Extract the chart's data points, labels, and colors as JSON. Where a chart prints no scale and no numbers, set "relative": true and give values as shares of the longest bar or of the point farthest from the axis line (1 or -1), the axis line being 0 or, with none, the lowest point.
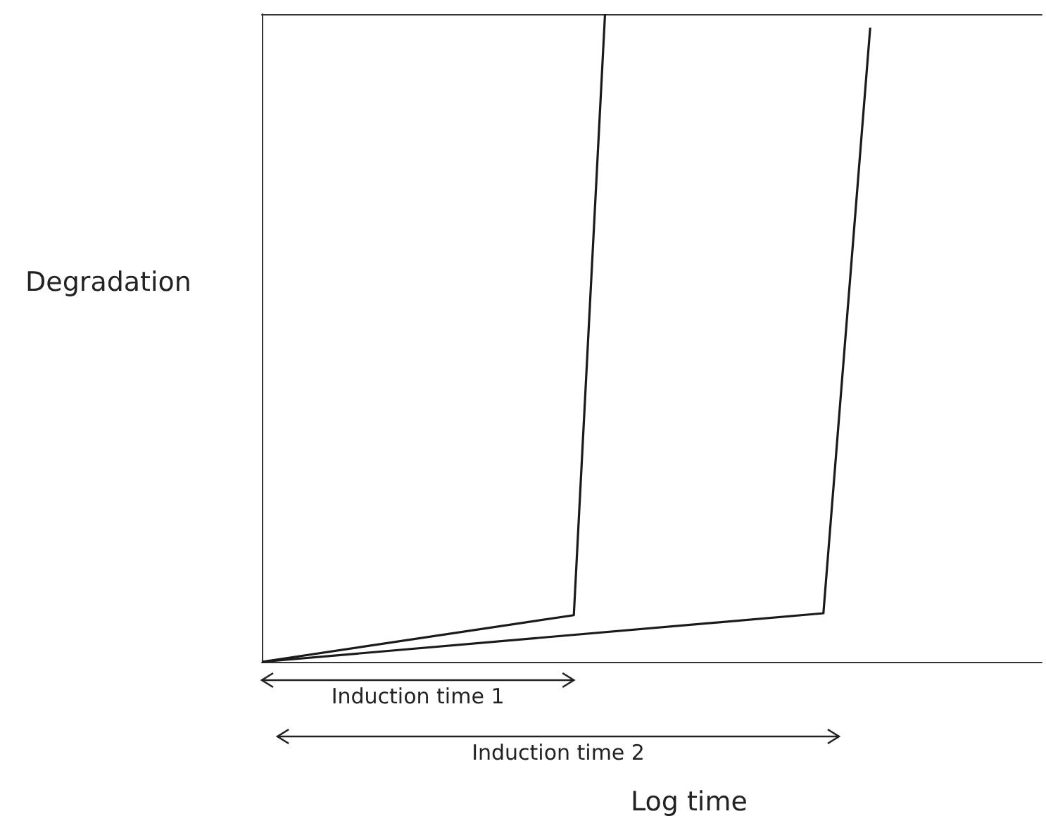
{
  "chart_data": {
    "type": "line",
    "relative": true,
    "xlabel": "Log time",
    "ylabel": "Degradation",
    "categories": [
      null,
      null,
      null,
      null,
      null,
      null,
      null,
      null,
      null,
      null,
      null,
      null,
      null,
      null,
      null,
      null,
      null,
      null,
      null,
      null,
      null,
      null,
      null,
      null,
      null,
      null,
      null,
      null,
      null,
      null,
      null,
      null,
      null,
      null,
      null,
      null,
      null,
      null,
      null,
      null,
      null,
      null,
      null,
      null,
      null,
      null,
      null,
      null,
      null,
      null,
      null
    ],
    "series": [
      {
        "color": "#1a1a1a",
        "values": [
          0,
          null,
          null,
          null,
          null,
          null,
          null,
          null,
          null,
          null,
          null,
          null,
          null,
          null,
          null,
          null,
          null,
          null,
          null,
          null,
          0.072,
          null,
          1,
          null,
          null,
          null,
          null,
          null,
          null,
          null,
          null,
          null,
          null,
          null,
          null,
          null,
          null,
          null,
          null,
          null,
          null,
          null,
          null,
          null,
          null,
          null,
          null,
          null,
          null,
          null,
          null
        ]
      },
      {
        "color": "#1a1a1a",
        "values": [
          0,
          null,
          null,
          null,
          null,
          null,
          null,
          null,
          null,
          null,
          null,
          null,
          null,
          null,
          null,
          null,
          null,
          null,
          null,
          null,
          null,
          null,
          null,
          null,
          null,
          null,
          null,
          null,
          null,
          null,
          null,
          null,
          null,
          null,
          null,
          null,
          0.075,
          null,
          null,
          0.979,
          null,
          null,
          null,
          null,
          null,
          null,
          null,
          null,
          null,
          null,
          null
        ]
      }
    ],
    "annotations": [
      "Induction time 1",
      "Induction time 2"
    ]
  }
}
